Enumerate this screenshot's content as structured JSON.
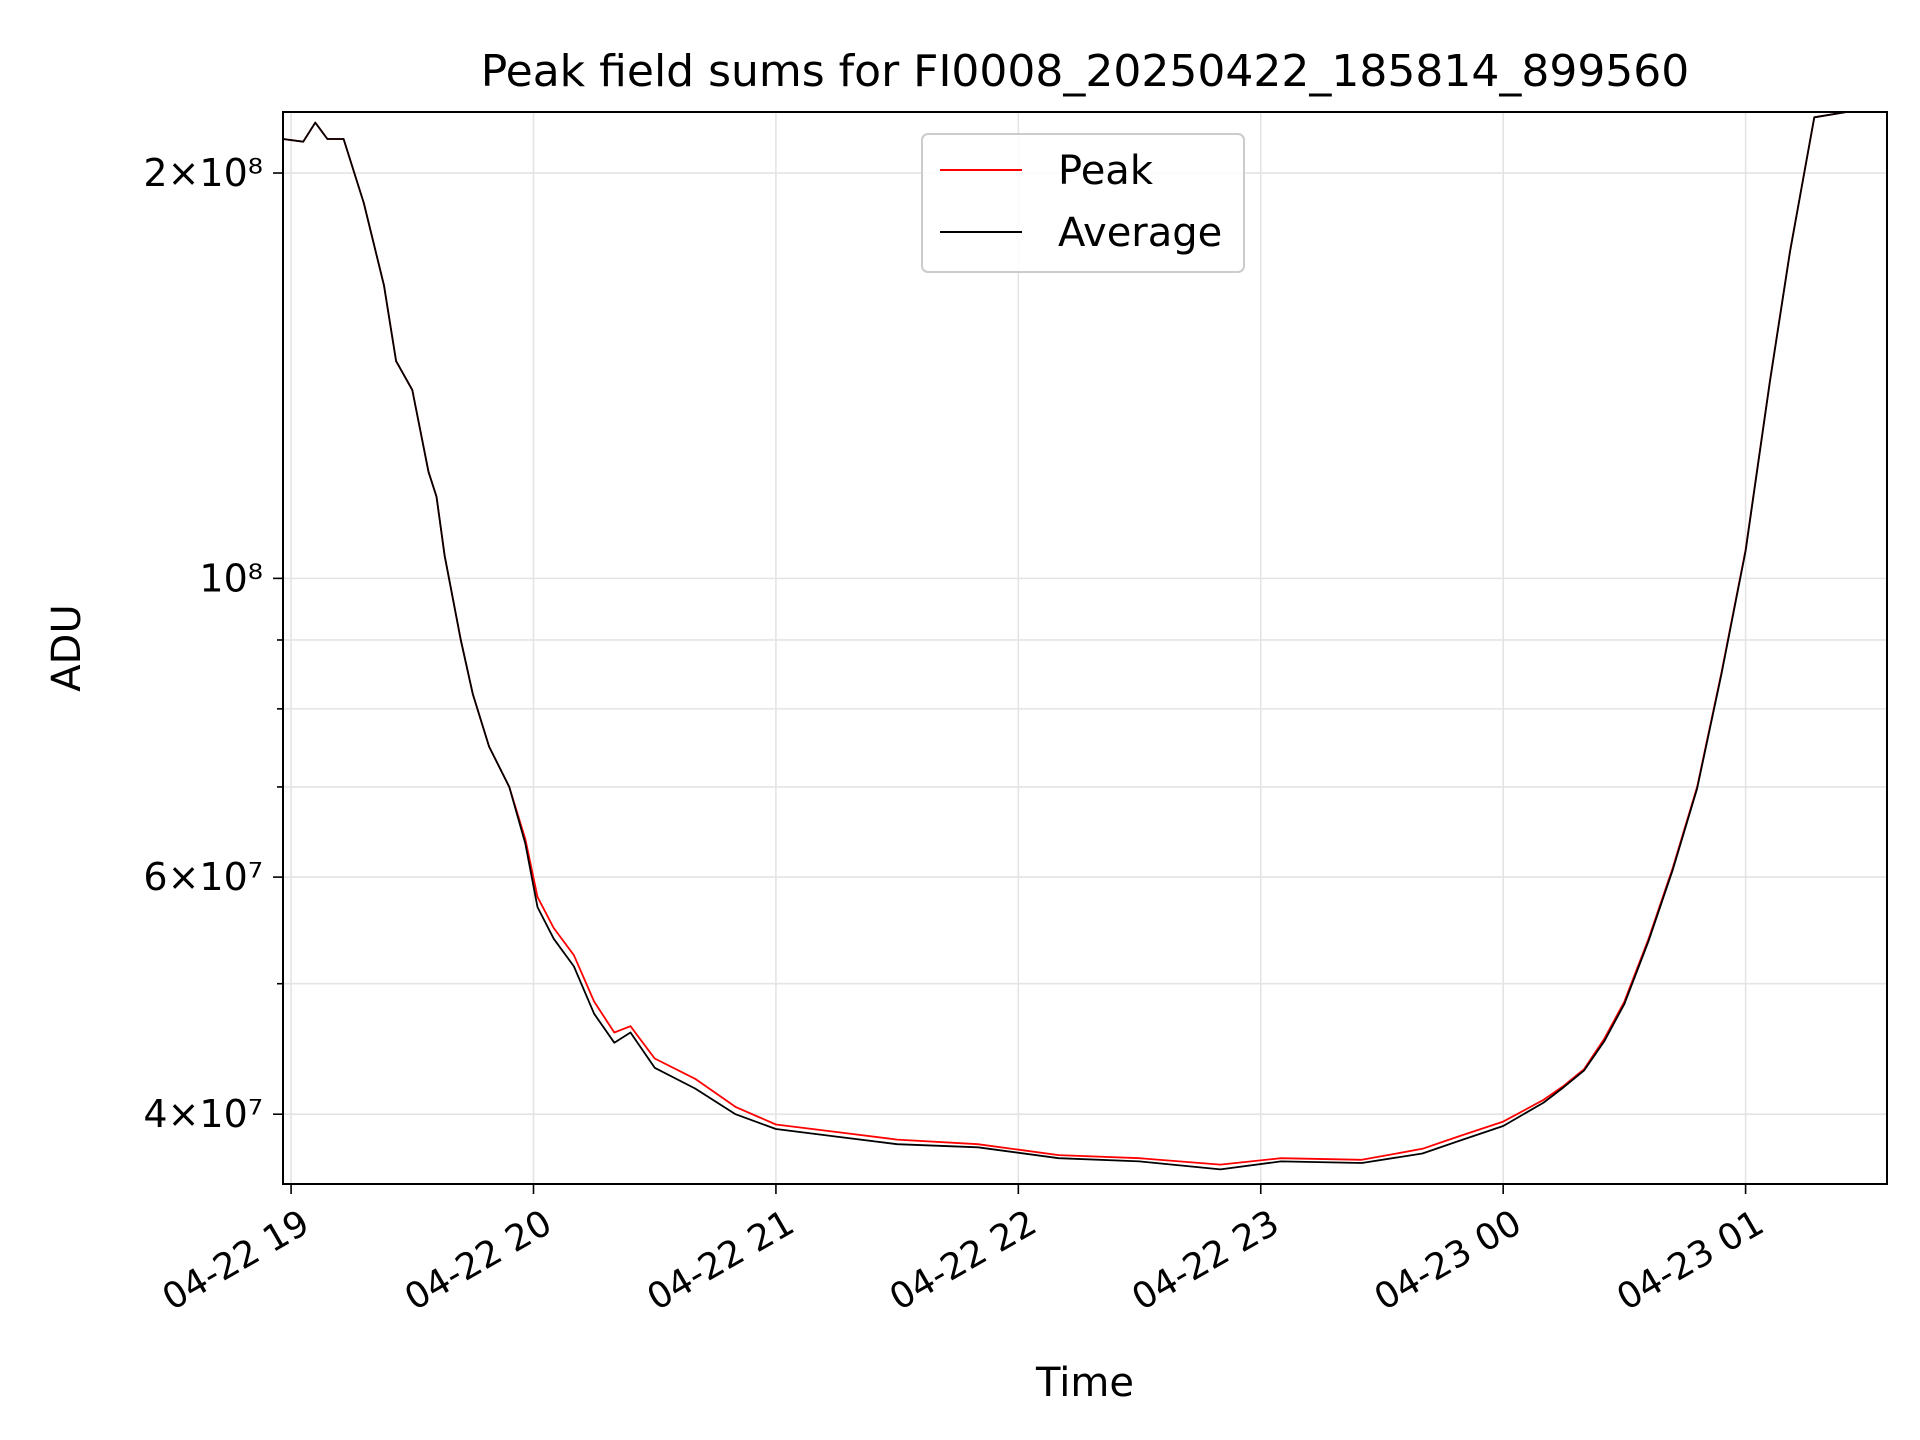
{
  "chart_data": {
    "type": "line",
    "title": "Peak field sums for FI0008_20250422_185814_899560",
    "xlabel": "Time",
    "ylabel": "ADU",
    "x_axis": {
      "type": "datetime",
      "range": [
        "2025-04-22 18:58",
        "2025-04-23 01:35"
      ],
      "ticks": [
        {
          "value": "2025-04-22 19:00",
          "label": "04-22 19"
        },
        {
          "value": "2025-04-22 20:00",
          "label": "04-22 20"
        },
        {
          "value": "2025-04-22 21:00",
          "label": "04-22 21"
        },
        {
          "value": "2025-04-22 22:00",
          "label": "04-22 22"
        },
        {
          "value": "2025-04-22 23:00",
          "label": "04-22 23"
        },
        {
          "value": "2025-04-23 00:00",
          "label": "04-23 00"
        },
        {
          "value": "2025-04-23 01:00",
          "label": "04-23 01"
        }
      ]
    },
    "y_axis": {
      "scale": "log",
      "range": [
        35500000,
        222000000
      ],
      "labeled_ticks": [
        {
          "value": 40000000,
          "label": "4×10⁷"
        },
        {
          "value": 60000000,
          "label": "6×10⁷"
        },
        {
          "value": 100000000,
          "label": "10⁸"
        },
        {
          "value": 200000000,
          "label": "2×10⁸"
        }
      ],
      "minor_ticks": [
        50000000,
        70000000,
        80000000,
        90000000
      ]
    },
    "grid": true,
    "legend": {
      "position": "top-center",
      "entries": [
        "Peak",
        "Average"
      ]
    },
    "series": [
      {
        "name": "Peak",
        "color": "#ff0000",
        "points": [
          [
            "2025-04-22 18:58",
            212000000
          ],
          [
            "2025-04-22 19:03",
            211000000
          ],
          [
            "2025-04-22 19:06",
            218000000
          ],
          [
            "2025-04-22 19:09",
            212000000
          ],
          [
            "2025-04-22 19:13",
            212000000
          ],
          [
            "2025-04-22 19:18",
            190000000
          ],
          [
            "2025-04-22 19:23",
            165000000
          ],
          [
            "2025-04-22 19:26",
            145000000
          ],
          [
            "2025-04-22 19:30",
            138000000
          ],
          [
            "2025-04-22 19:34",
            120000000
          ],
          [
            "2025-04-22 19:36",
            115000000
          ],
          [
            "2025-04-22 19:38",
            104000000
          ],
          [
            "2025-04-22 19:42",
            90000000
          ],
          [
            "2025-04-22 19:45",
            82000000
          ],
          [
            "2025-04-22 19:49",
            75000000
          ],
          [
            "2025-04-22 19:54",
            70000000
          ],
          [
            "2025-04-22 19:58",
            64000000
          ],
          [
            "2025-04-22 20:01",
            58000000
          ],
          [
            "2025-04-22 20:05",
            55000000
          ],
          [
            "2025-04-22 20:10",
            52500000
          ],
          [
            "2025-04-22 20:15",
            48500000
          ],
          [
            "2025-04-22 20:20",
            46000000
          ],
          [
            "2025-04-22 20:24",
            46500000
          ],
          [
            "2025-04-22 20:30",
            44000000
          ],
          [
            "2025-04-22 20:40",
            42500000
          ],
          [
            "2025-04-22 20:50",
            40500000
          ],
          [
            "2025-04-22 21:00",
            39300000
          ],
          [
            "2025-04-22 21:15",
            38800000
          ],
          [
            "2025-04-22 21:30",
            38300000
          ],
          [
            "2025-04-22 21:50",
            38000000
          ],
          [
            "2025-04-22 22:10",
            37300000
          ],
          [
            "2025-04-22 22:30",
            37100000
          ],
          [
            "2025-04-22 22:50",
            36700000
          ],
          [
            "2025-04-22 23:05",
            37100000
          ],
          [
            "2025-04-22 23:25",
            37000000
          ],
          [
            "2025-04-22 23:40",
            37700000
          ],
          [
            "2025-04-22 23:50",
            38600000
          ],
          [
            "2025-04-23 00:00",
            39500000
          ],
          [
            "2025-04-23 00:10",
            41000000
          ],
          [
            "2025-04-23 00:15",
            42000000
          ],
          [
            "2025-04-23 00:20",
            43200000
          ],
          [
            "2025-04-23 00:25",
            45500000
          ],
          [
            "2025-04-23 00:30",
            48500000
          ],
          [
            "2025-04-23 00:36",
            54000000
          ],
          [
            "2025-04-23 00:42",
            61000000
          ],
          [
            "2025-04-23 00:48",
            70000000
          ],
          [
            "2025-04-23 00:54",
            85000000
          ],
          [
            "2025-04-23 01:00",
            105000000
          ],
          [
            "2025-04-23 01:06",
            140000000
          ],
          [
            "2025-04-23 01:11",
            175000000
          ],
          [
            "2025-04-23 01:17",
            220000000
          ],
          [
            "2025-04-23 01:25",
            222000000
          ],
          [
            "2025-04-23 01:35",
            222000000
          ]
        ]
      },
      {
        "name": "Average",
        "color": "#000000",
        "points": [
          [
            "2025-04-22 18:58",
            212000000
          ],
          [
            "2025-04-22 19:03",
            211000000
          ],
          [
            "2025-04-22 19:06",
            218000000
          ],
          [
            "2025-04-22 19:09",
            212000000
          ],
          [
            "2025-04-22 19:13",
            212000000
          ],
          [
            "2025-04-22 19:18",
            190000000
          ],
          [
            "2025-04-22 19:23",
            165000000
          ],
          [
            "2025-04-22 19:26",
            145000000
          ],
          [
            "2025-04-22 19:30",
            138000000
          ],
          [
            "2025-04-22 19:34",
            120000000
          ],
          [
            "2025-04-22 19:36",
            115000000
          ],
          [
            "2025-04-22 19:38",
            104000000
          ],
          [
            "2025-04-22 19:42",
            90000000
          ],
          [
            "2025-04-22 19:45",
            82000000
          ],
          [
            "2025-04-22 19:49",
            75000000
          ],
          [
            "2025-04-22 19:54",
            70000000
          ],
          [
            "2025-04-22 19:58",
            63500000
          ],
          [
            "2025-04-22 20:01",
            57000000
          ],
          [
            "2025-04-22 20:05",
            54000000
          ],
          [
            "2025-04-22 20:10",
            51500000
          ],
          [
            "2025-04-22 20:15",
            47500000
          ],
          [
            "2025-04-22 20:20",
            45200000
          ],
          [
            "2025-04-22 20:24",
            46000000
          ],
          [
            "2025-04-22 20:30",
            43300000
          ],
          [
            "2025-04-22 20:40",
            41800000
          ],
          [
            "2025-04-22 20:50",
            40000000
          ],
          [
            "2025-04-22 21:00",
            39000000
          ],
          [
            "2025-04-22 21:15",
            38500000
          ],
          [
            "2025-04-22 21:30",
            38000000
          ],
          [
            "2025-04-22 21:50",
            37800000
          ],
          [
            "2025-04-22 22:10",
            37100000
          ],
          [
            "2025-04-22 22:30",
            36900000
          ],
          [
            "2025-04-22 22:50",
            36400000
          ],
          [
            "2025-04-22 23:05",
            36900000
          ],
          [
            "2025-04-22 23:25",
            36800000
          ],
          [
            "2025-04-22 23:40",
            37400000
          ],
          [
            "2025-04-22 23:50",
            38300000
          ],
          [
            "2025-04-23 00:00",
            39200000
          ],
          [
            "2025-04-23 00:10",
            40800000
          ],
          [
            "2025-04-23 00:15",
            41900000
          ],
          [
            "2025-04-23 00:20",
            43100000
          ],
          [
            "2025-04-23 00:25",
            45300000
          ],
          [
            "2025-04-23 00:30",
            48300000
          ],
          [
            "2025-04-23 00:36",
            53800000
          ],
          [
            "2025-04-23 00:42",
            60800000
          ],
          [
            "2025-04-23 00:48",
            69800000
          ],
          [
            "2025-04-23 00:54",
            84800000
          ],
          [
            "2025-04-23 01:00",
            104800000
          ],
          [
            "2025-04-23 01:06",
            139800000
          ],
          [
            "2025-04-23 01:11",
            174800000
          ],
          [
            "2025-04-23 01:17",
            220000000
          ],
          [
            "2025-04-23 01:25",
            222000000
          ],
          [
            "2025-04-23 01:35",
            222000000
          ]
        ]
      }
    ]
  }
}
